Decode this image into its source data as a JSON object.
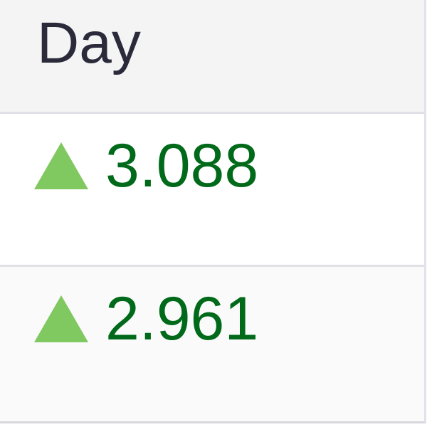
{
  "table": {
    "header": {
      "label": "Day"
    },
    "rows": [
      {
        "trend": "up",
        "value": "3.088"
      },
      {
        "trend": "up",
        "value": "2.961"
      }
    ]
  },
  "colors": {
    "up_icon": "#80c860",
    "up_text": "#006a1a",
    "header_bg": "#f4f4f4"
  }
}
